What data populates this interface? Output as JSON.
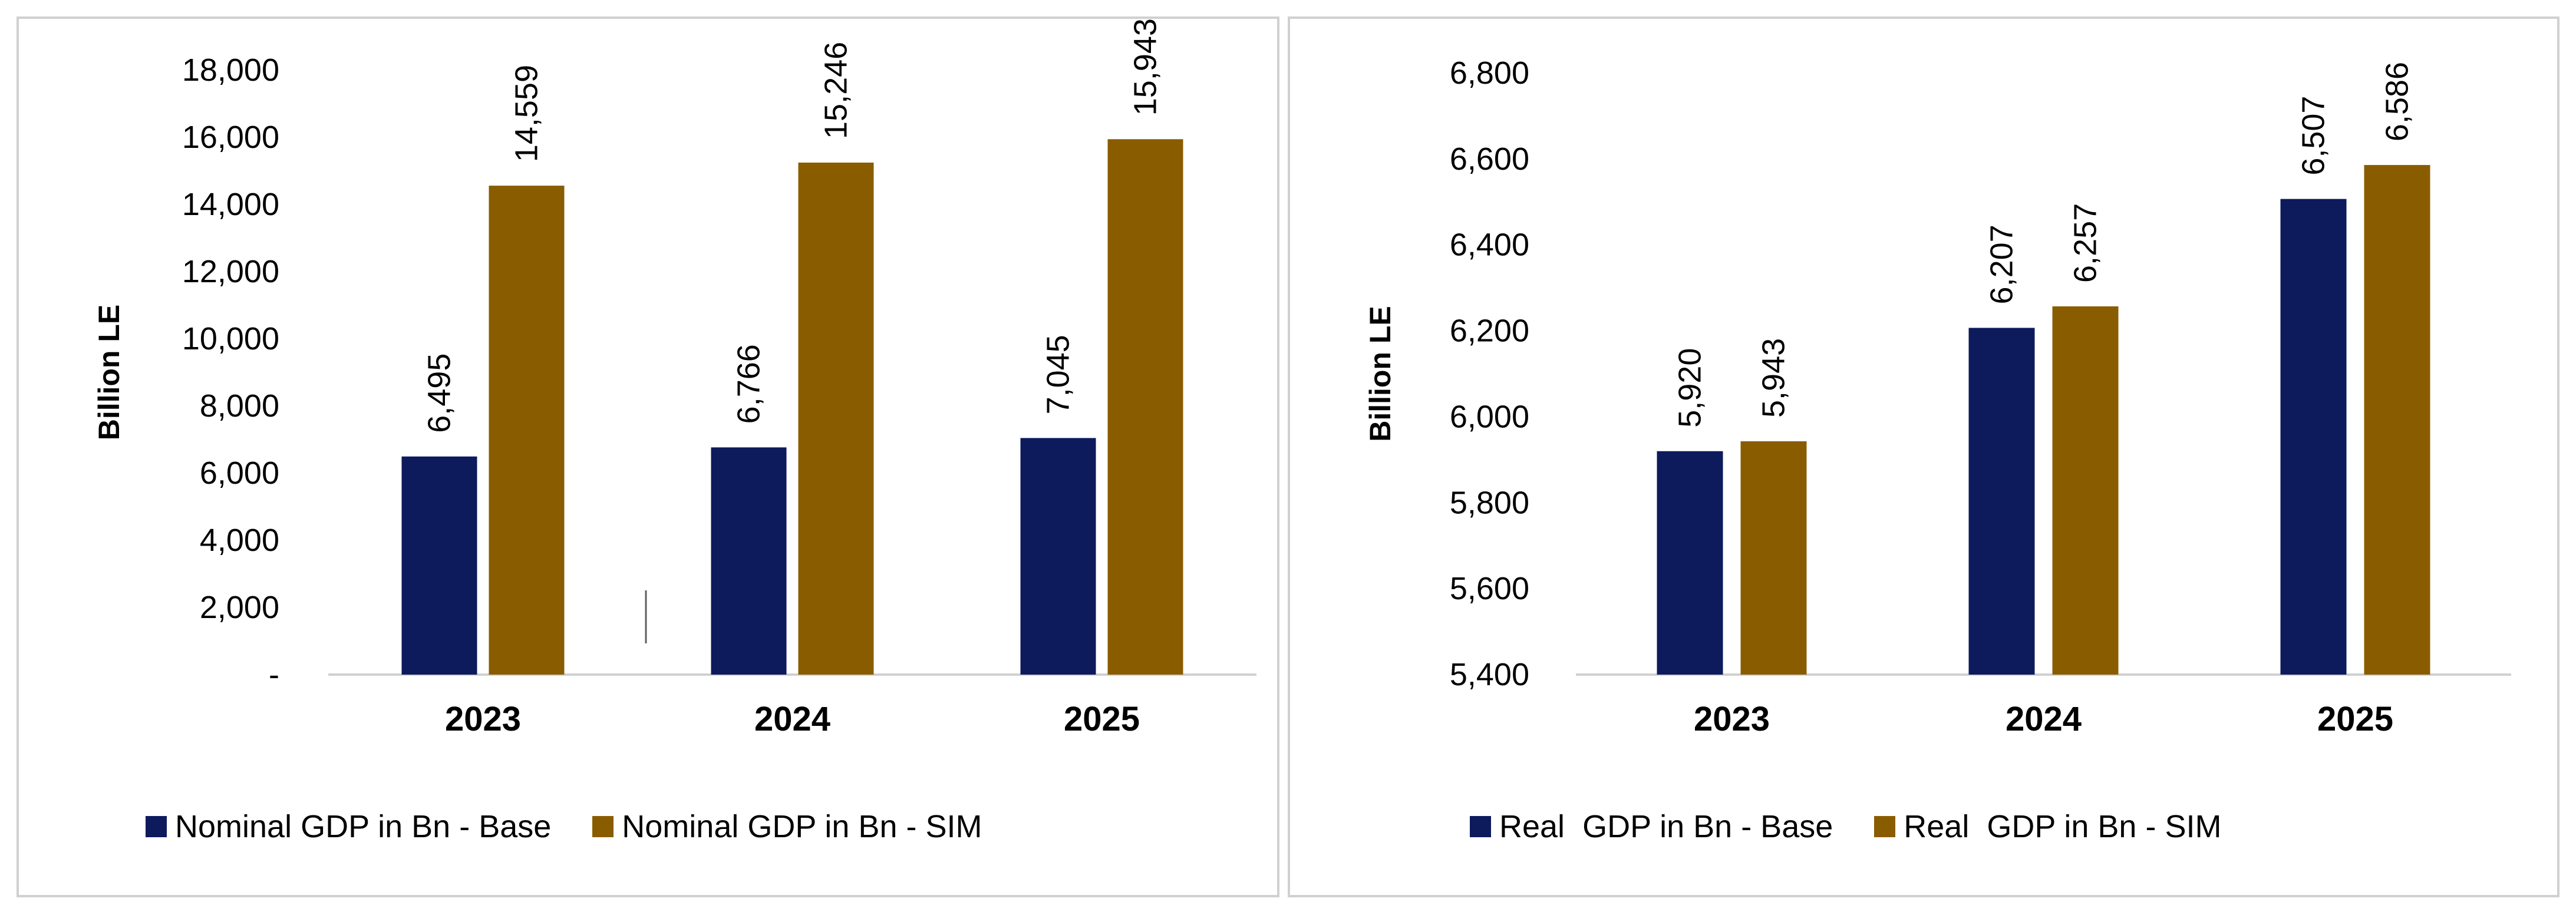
{
  "chart_data": [
    {
      "type": "bar",
      "categories": [
        "2023",
        "2024",
        "2025"
      ],
      "series": [
        {
          "name": "Nominal GDP in Bn - Base",
          "values": [
            6495,
            6766,
            7045
          ],
          "labels": [
            "6,495",
            "6,766",
            "7,045"
          ],
          "color": "#0d1a5c"
        },
        {
          "name": "Nominal GDP in Bn - SIM",
          "values": [
            14559,
            15246,
            15943
          ],
          "labels": [
            "14,559",
            "15,246",
            "15,943"
          ],
          "color": "#8a5c00"
        }
      ],
      "ylabel": "Billion LE",
      "ylim": [
        0,
        18000
      ],
      "yticks": [
        0,
        2000,
        4000,
        6000,
        8000,
        10000,
        12000,
        14000,
        16000,
        18000
      ],
      "yticklabels": [
        "-",
        "2,000",
        "4,000",
        "6,000",
        "8,000",
        "10,000",
        "12,000",
        "14,000",
        "16,000",
        "18,000"
      ],
      "grid": false,
      "legend": "bottom"
    },
    {
      "type": "bar",
      "categories": [
        "2023",
        "2024",
        "2025"
      ],
      "series": [
        {
          "name": "Real  GDP in Bn - Base",
          "values": [
            5920,
            6207,
            6507
          ],
          "labels": [
            "5,920",
            "6,207",
            "6,507"
          ],
          "color": "#0d1a5c"
        },
        {
          "name": "Real  GDP in Bn - SIM",
          "values": [
            5943,
            6257,
            6586
          ],
          "labels": [
            "5,943",
            "6,257",
            "6,586"
          ],
          "color": "#8a5c00"
        }
      ],
      "ylabel": "Billion LE",
      "ylim": [
        5400,
        6800
      ],
      "yticks": [
        5400,
        5600,
        5800,
        6000,
        6200,
        6400,
        6600,
        6800
      ],
      "yticklabels": [
        "5,400",
        "5,600",
        "5,800",
        "6,000",
        "6,200",
        "6,400",
        "6,600",
        "6,800"
      ],
      "grid": false,
      "legend": "bottom"
    }
  ]
}
